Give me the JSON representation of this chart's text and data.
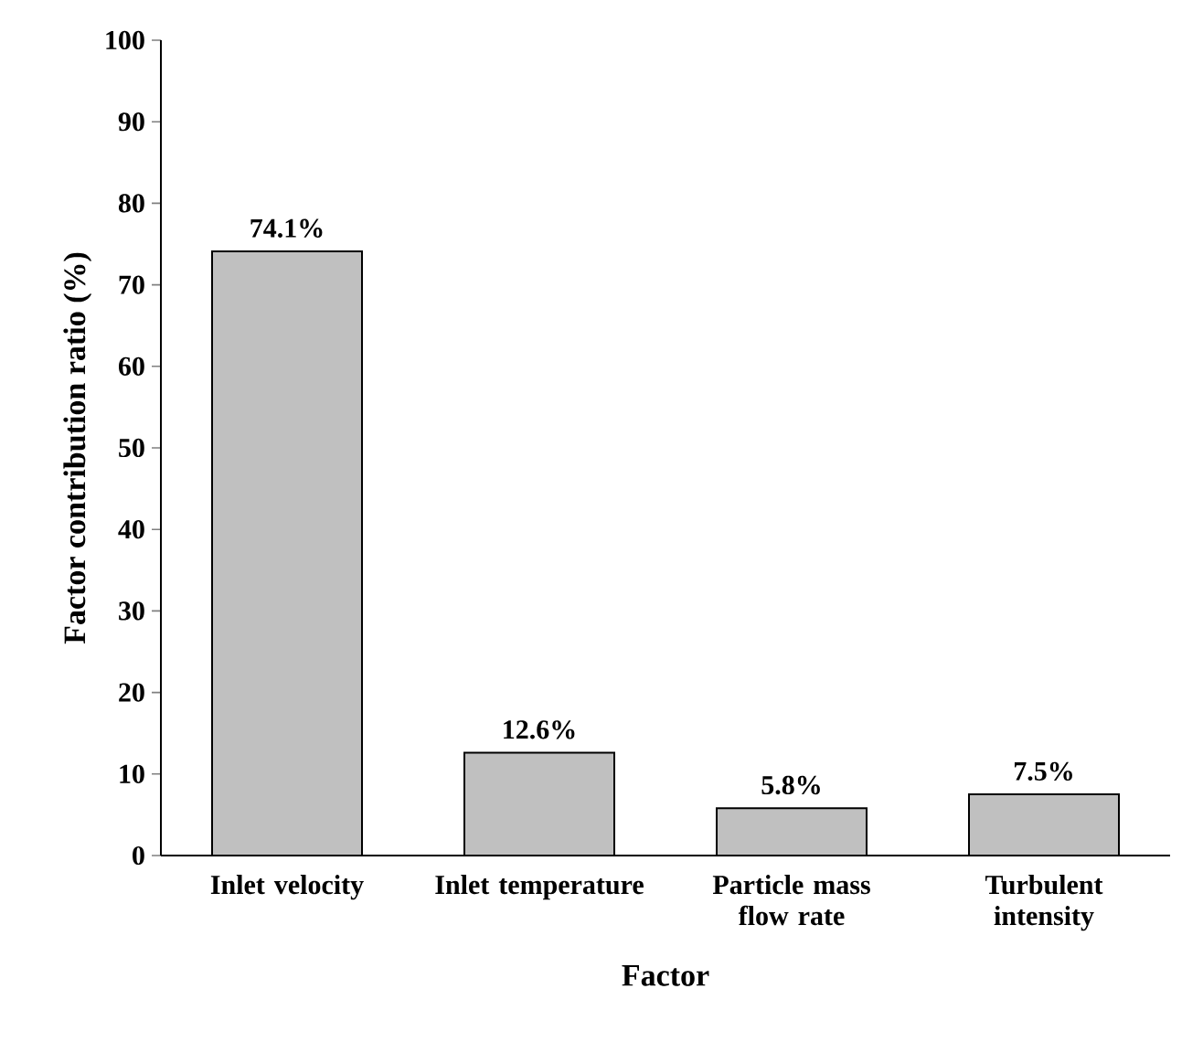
{
  "chart_data": {
    "type": "bar",
    "xlabel": "Factor",
    "ylabel": "Factor contribution ratio (%)",
    "categories": [
      "Inlet velocity",
      "Inlet temperature",
      "Particle mass flow rate",
      "Turbulent intensity"
    ],
    "values": [
      74.1,
      12.6,
      5.8,
      7.5
    ],
    "value_labels": [
      "74.1%",
      "12.6%",
      "5.8%",
      "7.5%"
    ],
    "color": "#c0c0c0",
    "ylim": [
      0,
      100
    ],
    "yticks": [
      0,
      10,
      20,
      30,
      40,
      50,
      60,
      70,
      80,
      90,
      100
    ],
    "grid": false
  }
}
